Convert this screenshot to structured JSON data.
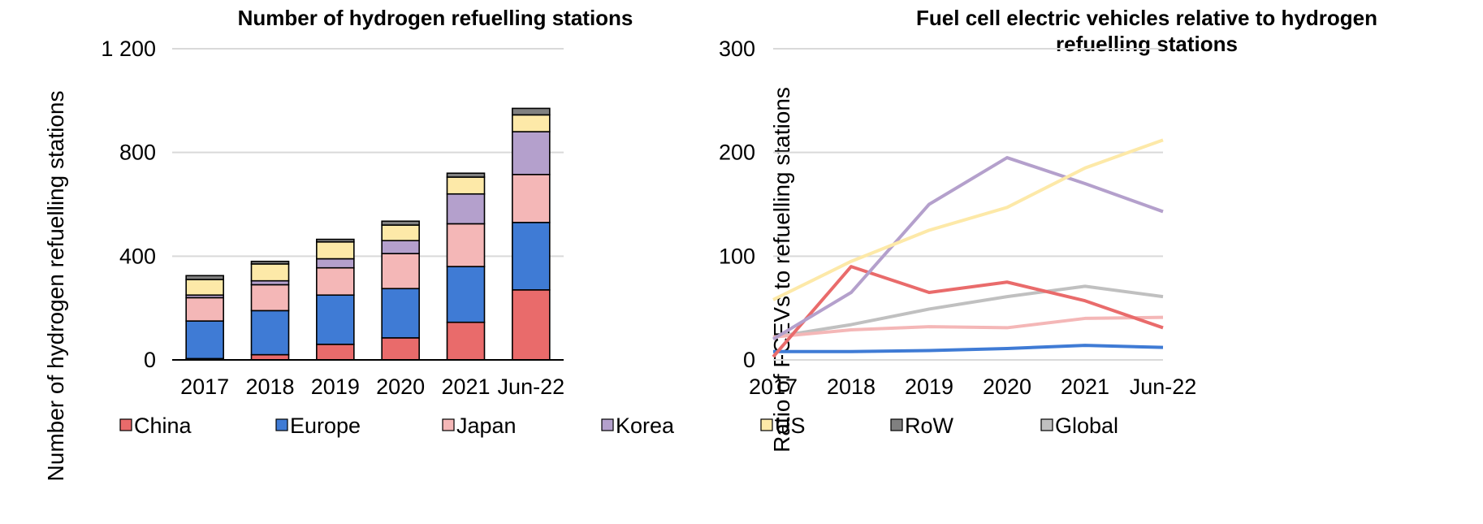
{
  "chart_data": [
    {
      "type": "bar",
      "stacked": true,
      "title": "Number of hydrogen refuelling stations",
      "xlabel": "",
      "ylabel": "Number of hydrogen refuelling stations",
      "ylim": [
        0,
        1200
      ],
      "yticks": [
        0,
        400,
        800,
        1200
      ],
      "ytick_labels": [
        "0",
        "400",
        "800",
        "1 200"
      ],
      "grid": true,
      "categories": [
        "2017",
        "2018",
        "2019",
        "2020",
        "2021",
        "Jun-22"
      ],
      "series": [
        {
          "name": "China",
          "color": "#e96b6b",
          "values": [
            5,
            20,
            60,
            85,
            145,
            270
          ]
        },
        {
          "name": "Europe",
          "color": "#3f7bd5",
          "values": [
            145,
            170,
            190,
            190,
            215,
            260
          ]
        },
        {
          "name": "Japan",
          "color": "#f4b7b7",
          "values": [
            90,
            100,
            105,
            135,
            165,
            185
          ]
        },
        {
          "name": "Korea",
          "color": "#b4a0cc",
          "values": [
            10,
            15,
            35,
            50,
            115,
            165
          ]
        },
        {
          "name": "US",
          "color": "#fde9a8",
          "values": [
            60,
            65,
            65,
            60,
            65,
            65
          ]
        },
        {
          "name": "RoW",
          "color": "#808080",
          "values": [
            15,
            10,
            10,
            15,
            15,
            25
          ]
        }
      ]
    },
    {
      "type": "line",
      "title": "Fuel cell electric vehicles relative to hydrogen refuelling stations",
      "title_lines": [
        "Fuel cell electric vehicles relative to hydrogen",
        "refuelling stations"
      ],
      "xlabel": "",
      "ylabel": "Ratio of FCEVs to refuelling stations",
      "ylim": [
        0,
        300
      ],
      "yticks": [
        0,
        100,
        200,
        300
      ],
      "ytick_labels": [
        "0",
        "100",
        "200",
        "300"
      ],
      "grid": true,
      "categories": [
        "2017",
        "2018",
        "2019",
        "2020",
        "2021",
        "Jun-22"
      ],
      "series": [
        {
          "name": "China",
          "color": "#e96b6b",
          "values": [
            3,
            90,
            65,
            75,
            57,
            31
          ]
        },
        {
          "name": "Europe",
          "color": "#3f7bd5",
          "values": [
            8,
            8,
            9,
            11,
            14,
            12
          ]
        },
        {
          "name": "Japan",
          "color": "#f4b7b7",
          "values": [
            22,
            29,
            32,
            31,
            40,
            41
          ]
        },
        {
          "name": "Korea",
          "color": "#b4a0cc",
          "values": [
            20,
            65,
            150,
            195,
            170,
            143
          ]
        },
        {
          "name": "US",
          "color": "#fde9a8",
          "values": [
            58,
            95,
            125,
            147,
            185,
            212
          ]
        },
        {
          "name": "Global",
          "color": "#c0c0c0",
          "values": [
            22,
            34,
            49,
            61,
            71,
            61
          ]
        }
      ]
    }
  ],
  "legend": [
    {
      "label": "China",
      "color": "#e96b6b"
    },
    {
      "label": "Europe",
      "color": "#3f7bd5"
    },
    {
      "label": "Japan",
      "color": "#f4b7b7"
    },
    {
      "label": "Korea",
      "color": "#b4a0cc"
    },
    {
      "label": "US",
      "color": "#fde9a8"
    },
    {
      "label": "RoW",
      "color": "#808080"
    },
    {
      "label": "Global",
      "color": "#c0c0c0"
    }
  ]
}
